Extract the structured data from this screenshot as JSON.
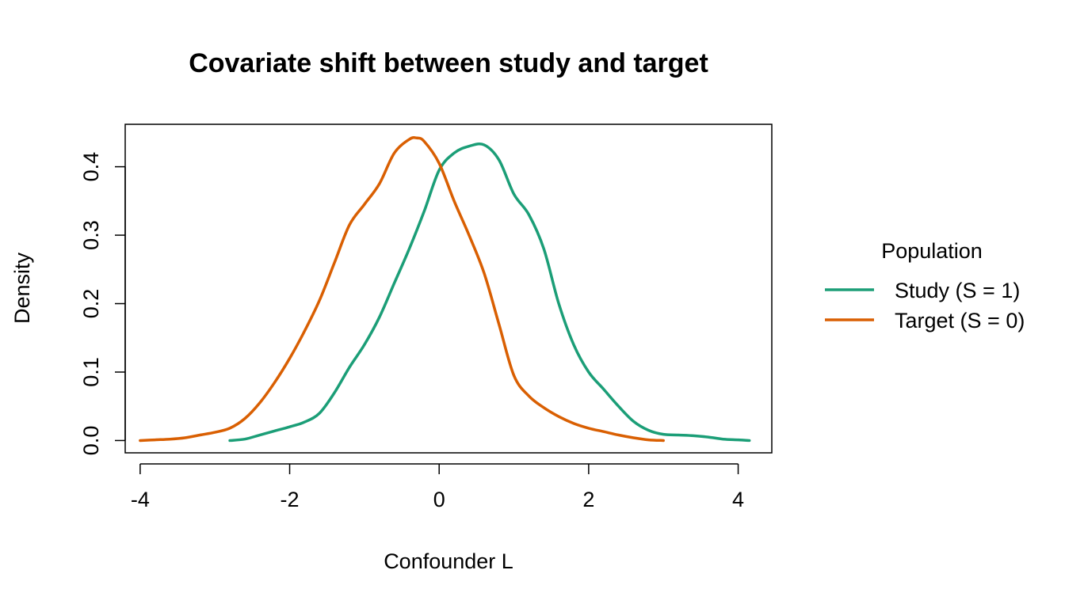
{
  "chart_data": {
    "type": "line",
    "title": "Covariate shift between study and target",
    "xlabel": "Confounder L",
    "ylabel": "Density",
    "xlim": [
      -4.2,
      4.45
    ],
    "ylim": [
      -0.018,
      0.462
    ],
    "x_ticks": [
      -4,
      -2,
      0,
      2,
      4
    ],
    "x_tick_labels": [
      "-4",
      "-2",
      "0",
      "2",
      "4"
    ],
    "y_ticks": [
      0.0,
      0.1,
      0.2,
      0.3,
      0.4
    ],
    "y_tick_labels": [
      "0.0",
      "0.1",
      "0.2",
      "0.3",
      "0.4"
    ],
    "grid": false,
    "legend": {
      "title": "Population",
      "placement": "right"
    },
    "series": [
      {
        "name": "Study (S = 1)",
        "color": "#1b9e77",
        "x": [
          -2.8,
          -2.6,
          -2.4,
          -2.2,
          -2.0,
          -1.8,
          -1.6,
          -1.4,
          -1.2,
          -1.0,
          -0.8,
          -0.6,
          -0.4,
          -0.2,
          0.0,
          0.2,
          0.4,
          0.6,
          0.8,
          1.0,
          1.2,
          1.4,
          1.6,
          1.8,
          2.0,
          2.2,
          2.4,
          2.6,
          2.8,
          3.0,
          3.2,
          3.4,
          3.6,
          3.8,
          4.0,
          4.15
        ],
        "y": [
          0.0,
          0.002,
          0.008,
          0.014,
          0.02,
          0.027,
          0.04,
          0.07,
          0.107,
          0.14,
          0.18,
          0.23,
          0.28,
          0.335,
          0.395,
          0.42,
          0.43,
          0.432,
          0.41,
          0.36,
          0.33,
          0.28,
          0.2,
          0.14,
          0.1,
          0.075,
          0.05,
          0.028,
          0.015,
          0.009,
          0.008,
          0.007,
          0.005,
          0.002,
          0.001,
          0.0
        ]
      },
      {
        "name": "Target (S = 0)",
        "color": "#d95f02",
        "x": [
          -4.0,
          -3.8,
          -3.6,
          -3.4,
          -3.2,
          -3.0,
          -2.8,
          -2.6,
          -2.4,
          -2.2,
          -2.0,
          -1.8,
          -1.6,
          -1.4,
          -1.2,
          -1.0,
          -0.8,
          -0.6,
          -0.4,
          -0.3,
          -0.2,
          0.0,
          0.2,
          0.4,
          0.6,
          0.8,
          1.0,
          1.2,
          1.4,
          1.6,
          1.8,
          2.0,
          2.2,
          2.4,
          2.6,
          2.8,
          3.0
        ],
        "y": [
          0.0,
          0.001,
          0.002,
          0.004,
          0.008,
          0.012,
          0.018,
          0.032,
          0.055,
          0.085,
          0.12,
          0.16,
          0.205,
          0.26,
          0.315,
          0.345,
          0.375,
          0.42,
          0.44,
          0.442,
          0.437,
          0.405,
          0.35,
          0.3,
          0.245,
          0.17,
          0.095,
          0.065,
          0.048,
          0.035,
          0.025,
          0.018,
          0.013,
          0.008,
          0.004,
          0.001,
          0.0
        ]
      }
    ]
  }
}
